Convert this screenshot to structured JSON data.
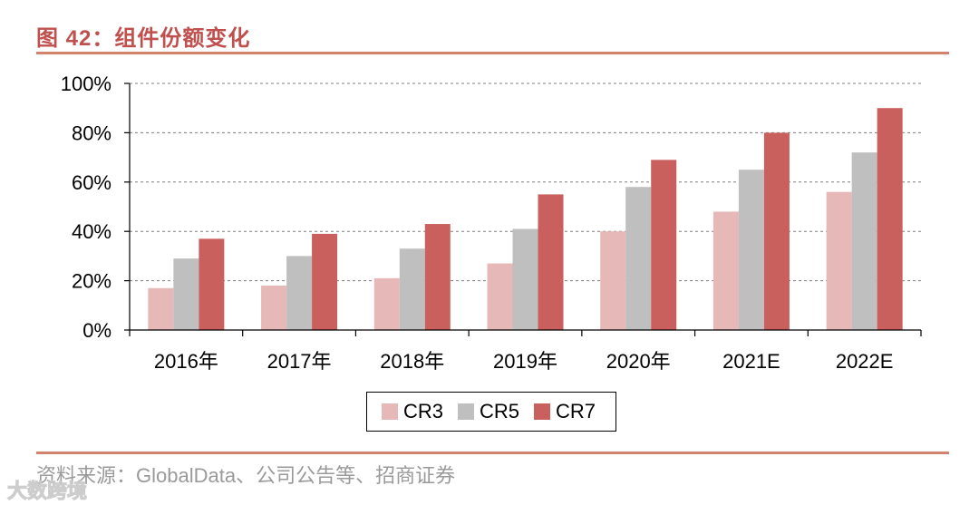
{
  "header": {
    "title": "图 42：组件份额变化"
  },
  "footer": {
    "source": "资料来源：GlobalData、公司公告等、招商证券",
    "watermark": "大数跨境"
  },
  "colors": {
    "accent": "#c0504d",
    "rule": "#d2836e",
    "cr3": "#e6b8b7",
    "cr5": "#bfbfbf",
    "cr7": "#c9605e",
    "grid": "#7f7f7f"
  },
  "chart_data": {
    "type": "bar",
    "title": "组件份额变化",
    "categories": [
      "2016年",
      "2017年",
      "2018年",
      "2019年",
      "2020年",
      "2021E",
      "2022E"
    ],
    "series": [
      {
        "name": "CR3",
        "values": [
          17,
          18,
          21,
          27,
          40,
          48,
          56
        ]
      },
      {
        "name": "CR5",
        "values": [
          29,
          30,
          33,
          41,
          58,
          65,
          72
        ]
      },
      {
        "name": "CR7",
        "values": [
          37,
          39,
          43,
          55,
          69,
          80,
          90
        ]
      }
    ],
    "yticks": [
      "0%",
      "20%",
      "40%",
      "60%",
      "80%",
      "100%"
    ],
    "ylim": [
      0,
      100
    ],
    "xlabel": "",
    "ylabel": "",
    "grid": true,
    "legend_position": "bottom-center"
  }
}
